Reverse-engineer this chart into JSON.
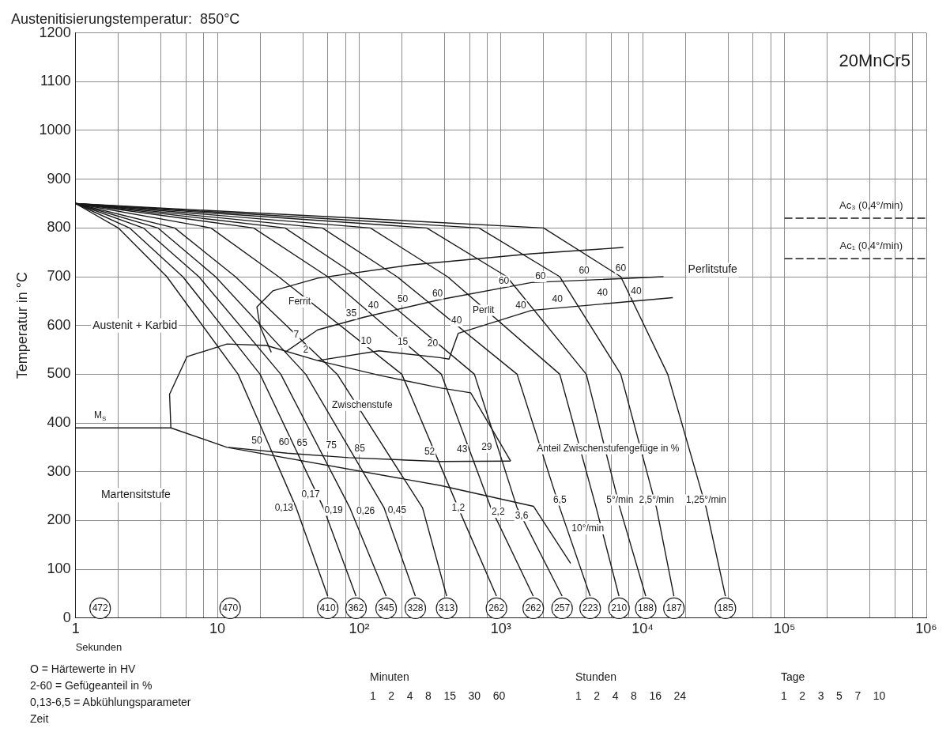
{
  "chart_data": {
    "type": "line",
    "title": "Austenitisierungstemperatur:  850°C",
    "subtitle": "20MnCr5",
    "xlabel": "Sekunden",
    "ylabel": "Temperatur in °C",
    "log": "x",
    "grid": true,
    "legend": false,
    "xlim": [
      1,
      1000000
    ],
    "ylim": [
      0,
      1200
    ],
    "xticks": [
      1,
      {
        "value": 2,
        "label": null
      },
      {
        "value": 4,
        "label": null
      },
      {
        "value": 6,
        "label": null
      },
      {
        "value": 8,
        "label": null
      },
      10,
      {
        "value": 20,
        "label": null
      },
      {
        "value": 40,
        "label": null
      },
      {
        "value": 60,
        "label": null
      },
      {
        "value": 80,
        "label": null
      },
      {
        "value": 100,
        "label": "10²"
      },
      {
        "value": 200,
        "label": null
      },
      {
        "value": 400,
        "label": null
      },
      {
        "value": 600,
        "label": null
      },
      {
        "value": 800,
        "label": null
      },
      {
        "value": 1000,
        "label": "10³"
      },
      {
        "value": 2000,
        "label": null
      },
      {
        "value": 4000,
        "label": null
      },
      {
        "value": 6000,
        "label": null
      },
      {
        "value": 8000,
        "label": null
      },
      {
        "value": 10000,
        "label": "10⁴"
      },
      {
        "value": 20000,
        "label": null
      },
      {
        "value": 40000,
        "label": null
      },
      {
        "value": 60000,
        "label": null
      },
      {
        "value": 80000,
        "label": null
      },
      {
        "value": 100000,
        "label": "10⁵"
      },
      {
        "value": 200000,
        "label": null
      },
      {
        "value": 400000,
        "label": null
      },
      {
        "value": 600000,
        "label": null
      },
      {
        "value": 800000,
        "label": null
      },
      {
        "value": 1000000,
        "label": "10⁶"
      }
    ],
    "yticks": [
      0,
      100,
      200,
      300,
      400,
      500,
      600,
      700,
      800,
      900,
      1000,
      1100,
      1200
    ],
    "series": [
      {
        "color": "#1a1a1a",
        "x": [
          1,
          2,
          4.4,
          14,
          36,
          60
        ],
        "values": [
          850,
          800,
          700,
          500,
          226,
          45
        ]
      },
      {
        "color": "#1a1a1a",
        "x": [
          1,
          2.4,
          5.7,
          20,
          56,
          95
        ],
        "values": [
          850,
          800,
          700,
          500,
          226,
          45
        ]
      },
      {
        "color": "#1a1a1a",
        "x": [
          1,
          3,
          7.4,
          28,
          86,
          155
        ],
        "values": [
          850,
          800,
          700,
          500,
          226,
          45
        ]
      },
      {
        "color": "#1a1a1a",
        "x": [
          1,
          3.8,
          9.7,
          42,
          150,
          249
        ],
        "values": [
          850,
          800,
          700,
          500,
          226,
          45
        ]
      },
      {
        "color": "#1a1a1a",
        "x": [
          1,
          5,
          13.4,
          70,
          280,
          414
        ],
        "values": [
          850,
          800,
          700,
          500,
          226,
          45
        ]
      },
      {
        "color": "#1a1a1a",
        "x": [
          1,
          9,
          27,
          200,
          500,
          930
        ],
        "values": [
          850,
          800,
          700,
          500,
          226,
          45
        ]
      },
      {
        "color": "#1a1a1a",
        "x": [
          1,
          18,
          60,
          380,
          850,
          1690
        ],
        "values": [
          850,
          800,
          700,
          500,
          226,
          45
        ]
      },
      {
        "color": "#1a1a1a",
        "x": [
          1,
          30,
          98,
          650,
          1300,
          2700
        ],
        "values": [
          850,
          800,
          700,
          500,
          226,
          45
        ]
      },
      {
        "color": "#1a1a1a",
        "x": [
          1,
          55,
          185,
          1300,
          2600,
          4260
        ],
        "values": [
          850,
          800,
          700,
          500,
          226,
          45
        ]
      },
      {
        "color": "#1a1a1a",
        "x": [
          1,
          120,
          420,
          2600,
          4700,
          6800
        ],
        "values": [
          850,
          800,
          700,
          500,
          226,
          45
        ]
      },
      {
        "color": "#1a1a1a",
        "x": [
          1,
          300,
          1100,
          4000,
          6900,
          10500
        ],
        "values": [
          850,
          800,
          700,
          500,
          226,
          45
        ]
      },
      {
        "color": "#1a1a1a",
        "x": [
          1,
          700,
          2600,
          7000,
          12500,
          16600
        ],
        "values": [
          850,
          800,
          700,
          500,
          226,
          45
        ]
      },
      {
        "color": "#1a1a1a",
        "x": [
          1,
          2000,
          7000,
          15000,
          28000,
          38300
        ],
        "values": [
          850,
          800,
          700,
          500,
          226,
          45
        ]
      },
      {
        "color": "#1a1a1a",
        "x": [
          7300,
          1640,
          228,
          51,
          24.6,
          19,
          20,
          24
        ],
        "values": [
          760,
          747,
          724,
          697,
          671,
          638,
          598,
          545
        ]
      },
      {
        "color": "#1a1a1a",
        "x": [
          14000,
          1640,
          371,
          108,
          51,
          30
        ],
        "values": [
          700,
          688,
          653,
          617,
          591,
          545
        ]
      },
      {
        "color": "#1a1a1a",
        "x": [
          16300,
          1640,
          500,
          430,
          371,
          138,
          51
        ],
        "values": [
          657,
          631,
          584,
          531,
          534,
          548,
          528
        ]
      },
      {
        "color": "#1a1a1a",
        "x": [
          4.7,
          4.6,
          6.1,
          11.7,
          22.2,
          51,
          138,
          371,
          612,
          1170
        ],
        "values": [
          390,
          459,
          536,
          562,
          559,
          528,
          498,
          472,
          462,
          322
        ]
      },
      {
        "color": "#1a1a1a",
        "x": [
          12,
          31,
          84,
          371,
          1170
        ],
        "values": [
          350,
          338,
          329,
          321,
          322
        ]
      },
      {
        "color": "#1a1a1a",
        "x": [
          1,
          4.7,
          11.7,
          371,
          1700,
          3100
        ],
        "values": [
          390,
          390,
          350,
          272,
          229,
          112
        ]
      },
      {
        "name": "Ac₃ (0,4°/min)",
        "color": "#1a1a1a",
        "line_style": "dashed",
        "x": [
          100000,
          1000000
        ],
        "values": [
          820,
          820
        ]
      },
      {
        "name": "Ac₁ (0,4°/min)",
        "color": "#1a1a1a",
        "line_style": "dashed",
        "x": [
          100000,
          1000000
        ],
        "values": [
          737,
          737
        ]
      },
      {
        "type": "scatter",
        "marker": "circle",
        "color": "#1a1a1a",
        "x": [
          1.49,
          12.3,
          60,
          95,
          155,
          249,
          414,
          930,
          1690,
          2700,
          4260,
          6800,
          10500,
          16600,
          38300
        ],
        "values": [
          20,
          20,
          20,
          20,
          20,
          20,
          20,
          20,
          20,
          20,
          20,
          20,
          20,
          20,
          20
        ]
      }
    ],
    "annotations": [
      {
        "text": "472",
        "x": 1.49,
        "y": 20
      },
      {
        "text": "470",
        "x": 12.3,
        "y": 20
      },
      {
        "text": "410",
        "x": 60,
        "y": 20
      },
      {
        "text": "362",
        "x": 95,
        "y": 20
      },
      {
        "text": "345",
        "x": 155,
        "y": 20
      },
      {
        "text": "328",
        "x": 249,
        "y": 20
      },
      {
        "text": "313",
        "x": 414,
        "y": 20
      },
      {
        "text": "262",
        "x": 930,
        "y": 20
      },
      {
        "text": "262",
        "x": 1690,
        "y": 20
      },
      {
        "text": "257",
        "x": 2700,
        "y": 20
      },
      {
        "text": "223",
        "x": 4260,
        "y": 20
      },
      {
        "text": "210",
        "x": 6800,
        "y": 20
      },
      {
        "text": "188",
        "x": 10500,
        "y": 20
      },
      {
        "text": "187",
        "x": 16600,
        "y": 20
      },
      {
        "text": "185",
        "x": 38300,
        "y": 20
      },
      {
        "text": "M$_{S}$",
        "x": 1.49,
        "y": 415
      },
      {
        "text": "Zwischenstufe",
        "x": 105,
        "y": 436
      },
      {
        "text": "Ferrit",
        "x": 38,
        "y": 648
      },
      {
        "text": "Perlit",
        "x": 753,
        "y": 631
      },
      {
        "text": "Anteil Zwischenstufengefüge in %",
        "x": 5700,
        "y": 347
      },
      {
        "text": "35",
        "x": 88,
        "y": 624
      },
      {
        "text": "40",
        "x": 126,
        "y": 640
      },
      {
        "text": "50",
        "x": 203,
        "y": 653
      },
      {
        "text": "60",
        "x": 357,
        "y": 665
      },
      {
        "text": "7",
        "x": 36,
        "y": 581
      },
      {
        "text": "2",
        "x": 42,
        "y": 550
      },
      {
        "text": "10",
        "x": 112,
        "y": 567
      },
      {
        "text": "15",
        "x": 203,
        "y": 566
      },
      {
        "text": "20",
        "x": 330,
        "y": 562
      },
      {
        "text": "40",
        "x": 487,
        "y": 609
      },
      {
        "text": "40",
        "x": 1380,
        "y": 641
      },
      {
        "text": "40",
        "x": 2500,
        "y": 653
      },
      {
        "text": "40",
        "x": 5200,
        "y": 667
      },
      {
        "text": "40",
        "x": 9000,
        "y": 669
      },
      {
        "text": "60",
        "x": 1050,
        "y": 691
      },
      {
        "text": "60",
        "x": 1900,
        "y": 700
      },
      {
        "text": "60",
        "x": 3860,
        "y": 712
      },
      {
        "text": "60",
        "x": 7000,
        "y": 717
      },
      {
        "text": "50",
        "x": 19,
        "y": 364
      },
      {
        "text": "60",
        "x": 29.5,
        "y": 360
      },
      {
        "text": "65",
        "x": 39.6,
        "y": 359
      },
      {
        "text": "75",
        "x": 63.6,
        "y": 353
      },
      {
        "text": "85",
        "x": 101,
        "y": 347
      },
      {
        "text": "52",
        "x": 314,
        "y": 341
      },
      {
        "text": "43",
        "x": 532,
        "y": 345
      },
      {
        "text": "29",
        "x": 794,
        "y": 350
      },
      {
        "text": "0,13",
        "x": 29.5,
        "y": 226
      },
      {
        "text": "0,17",
        "x": 45.5,
        "y": 253
      },
      {
        "text": "0,19",
        "x": 66,
        "y": 221
      },
      {
        "text": "0,26",
        "x": 111,
        "y": 219
      },
      {
        "text": "0,45",
        "x": 185,
        "y": 221
      },
      {
        "text": "1,2",
        "x": 500,
        "y": 226
      },
      {
        "text": "2,2",
        "x": 955,
        "y": 217
      },
      {
        "text": "3,6",
        "x": 1400,
        "y": 210
      },
      {
        "text": "6,5",
        "x": 2600,
        "y": 242
      },
      {
        "text": "10°/min",
        "x": 4100,
        "y": 183
      },
      {
        "text": "5°/min",
        "x": 6900,
        "y": 242
      },
      {
        "text": "2,5°/min",
        "x": 12500,
        "y": 242
      },
      {
        "text": "1,25°/min",
        "x": 28000,
        "y": 242
      },
      "Martensitstufe",
      "Austenit + Karbid",
      "Perlitstufe",
      "O = Härtewerte in HV",
      "2-60 = Gefügeanteil in %",
      "0,13-6,5 = Abkühlungsparameter",
      "Zeit",
      "Minuten",
      "1    2    4    8    15    30    60",
      "Stunden",
      "1    2    4    8    16    24",
      "Tage",
      "1    2    3    5    7    10"
    ]
  }
}
